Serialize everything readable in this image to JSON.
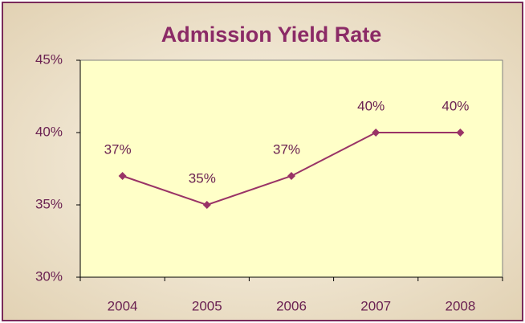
{
  "chart_data": {
    "type": "line",
    "title": "Admission Yield Rate",
    "categories": [
      "2004",
      "2005",
      "2006",
      "2007",
      "2008"
    ],
    "values": [
      37,
      35,
      37,
      40,
      40
    ],
    "value_labels": [
      "37%",
      "35%",
      "37%",
      "40%",
      "40%"
    ],
    "color": "#993366",
    "ylim": [
      30,
      45
    ],
    "yticks": [
      {
        "value": 30,
        "label": "30%"
      },
      {
        "value": 35,
        "label": "35%"
      },
      {
        "value": 40,
        "label": "40%"
      },
      {
        "value": 45,
        "label": "45%"
      }
    ],
    "grid": false
  }
}
